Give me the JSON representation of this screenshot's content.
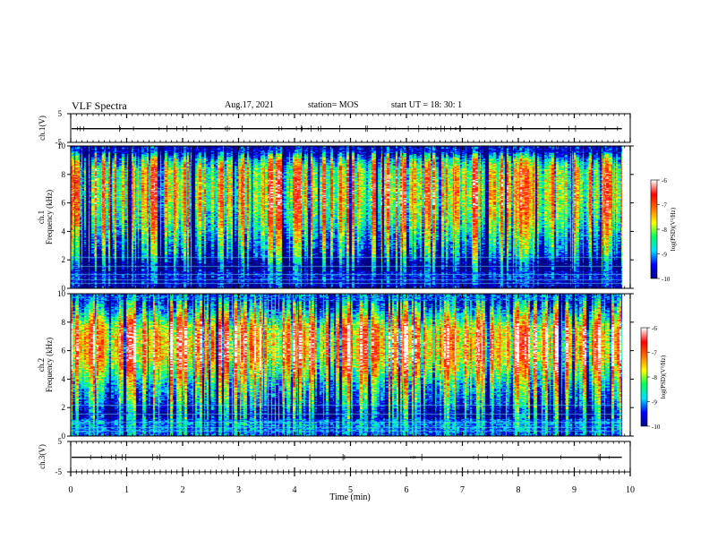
{
  "header": {
    "title": "VLF Spectra",
    "date": "Aug.17, 2021",
    "station": "station= MOS",
    "start": "start  UT =   18: 30: 1"
  },
  "chart_data": [
    {
      "type": "line",
      "panel": "ch1-waveform",
      "ylabel": "ch.1(V)",
      "ylim": [
        -5,
        5
      ],
      "yticks": [
        "5",
        "-5"
      ],
      "xlim": [
        0,
        10
      ],
      "series": [
        {
          "values": [
            -0.2,
            -0.2
          ]
        }
      ]
    },
    {
      "type": "heatmap",
      "panel": "ch1-spectrogram",
      "ylabel_top": "ch.1",
      "ylabel": "Frequency (kHz)",
      "ylim": [
        0,
        10
      ],
      "yticks": [
        "0",
        "2",
        "4",
        "6",
        "8",
        "10"
      ],
      "xlim": [
        0,
        10
      ],
      "x_end": 9.85,
      "profile_freq_khz": [
        0.3,
        0.9,
        1.5,
        2.5,
        3.5,
        4.5,
        5.5,
        6.5,
        7.5,
        8.3,
        9.0,
        9.6
      ],
      "profile_log_psd": [
        -9.6,
        -9.3,
        -9.8,
        -8.8,
        -8.4,
        -7.9,
        -7.6,
        -7.4,
        -7.5,
        -7.6,
        -8.3,
        -9.5
      ],
      "colorbar": {
        "label": "log(PSD)(V²/Hz)",
        "range": [
          -10,
          -6
        ],
        "ticks": [
          "-6",
          "-7",
          "-8",
          "-9",
          "-10"
        ]
      }
    },
    {
      "type": "heatmap",
      "panel": "ch2-spectrogram",
      "ylabel_top": "ch.2",
      "ylabel": "Frequency (kHz)",
      "ylim": [
        0,
        10
      ],
      "yticks": [
        "0",
        "2",
        "4",
        "6",
        "8",
        "10"
      ],
      "xlim": [
        0,
        10
      ],
      "x_end": 9.85,
      "profile_freq_khz": [
        0.3,
        0.9,
        1.5,
        2.5,
        3.5,
        4.5,
        5.5,
        6.5,
        7.5,
        8.3,
        9.0,
        9.6
      ],
      "profile_log_psd": [
        -9.0,
        -8.8,
        -9.3,
        -8.6,
        -8.2,
        -7.5,
        -6.9,
        -6.8,
        -7.0,
        -7.8,
        -8.5,
        -9.0
      ],
      "colorbar": {
        "label": "log(PSD)(V²/Hz)",
        "range": [
          -10,
          -6
        ],
        "ticks": [
          "-6",
          "-7",
          "-8",
          "-9",
          "-10"
        ]
      }
    },
    {
      "type": "line",
      "panel": "ch3-waveform",
      "ylabel": "ch.3(V)",
      "ylim": [
        -5,
        5
      ],
      "yticks": [
        "5",
        "-5"
      ],
      "xlim": [
        0,
        10
      ],
      "xlabel": "Time (min)",
      "xticks": [
        "0",
        "1",
        "2",
        "3",
        "4",
        "5",
        "6",
        "7",
        "8",
        "9",
        "10"
      ],
      "series": [
        {
          "values": [
            -0.2,
            -0.2
          ]
        }
      ]
    }
  ],
  "colormap": [
    "#000080",
    "#0000ff",
    "#00e0ff",
    "#00ff60",
    "#ffff00",
    "#ff7000",
    "#ff0000",
    "#ffffff"
  ]
}
